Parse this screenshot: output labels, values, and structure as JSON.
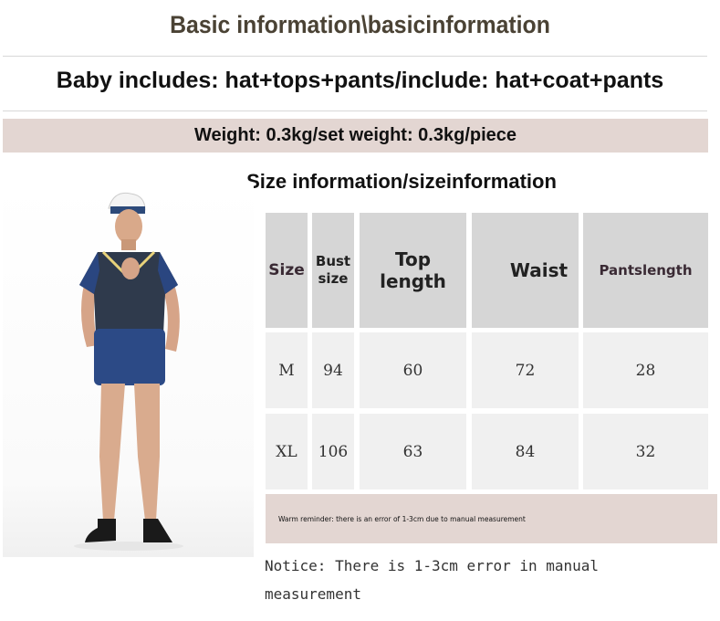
{
  "title": "Basic information\\basicinformation",
  "includes": "Baby includes: hat+tops+pants/include: hat+coat+pants",
  "weight": "Weight: 0.3kg/set weight: 0.3kg/piece",
  "size_heading": "Size information/sizeinformation",
  "table": {
    "headers": [
      "Size",
      "Bust size",
      "Top length",
      "Waist",
      "Pantslength"
    ],
    "rows": [
      [
        "M",
        "94",
        "60",
        "72",
        "28"
      ],
      [
        "XL",
        "106",
        "63",
        "84",
        "32"
      ]
    ]
  },
  "reminder": "Warm reminder: there is an error of 1-3cm due to manual measurement",
  "notice": "Notice: There is 1-3cm error in manual measurement",
  "colors": {
    "title": "#4a4234",
    "band": "#e3d6d2",
    "header_cell": "#d6d6d6",
    "body_cell": "#f0f0f0"
  }
}
